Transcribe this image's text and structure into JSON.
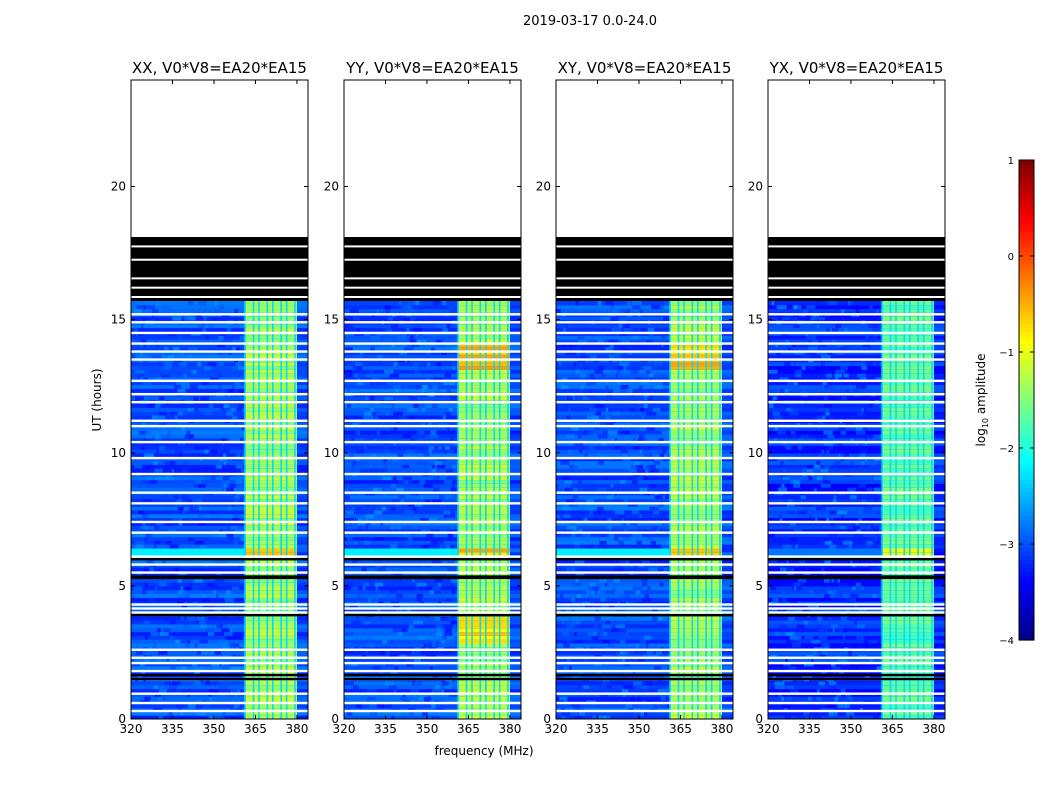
{
  "suptitle": "2019-03-17 0.0-24.0",
  "chart_data": {
    "type": "heatmap",
    "panels": [
      {
        "title": "XX, V0*V8=EA20*EA15",
        "pol": "XX"
      },
      {
        "title": "YY, V0*V8=EA20*EA15",
        "pol": "YY"
      },
      {
        "title": "XY, V0*V8=EA20*EA15",
        "pol": "XY"
      },
      {
        "title": "YX, V0*V8=EA20*EA15",
        "pol": "YX"
      }
    ],
    "xlabel": "frequency (MHz)",
    "ylabel": "UT (hours)",
    "xlim": [
      320,
      384
    ],
    "ylim": [
      0,
      24
    ],
    "xticks": [
      320,
      335,
      350,
      365,
      380
    ],
    "yticks": [
      0,
      5,
      10,
      15,
      20
    ],
    "colorbar": {
      "label": "log10 amplitude",
      "label_prefix": "log",
      "label_sub": "10",
      "label_suffix": " amplitude",
      "range": [
        -4,
        1
      ],
      "ticks": [
        1,
        0,
        -1,
        -2,
        -3,
        -4
      ],
      "colormap": "jet"
    },
    "data_coverage_hours": [
      0,
      15.7
    ],
    "flagged_black_band_hours": [
      15.7,
      18.1
    ],
    "empty_after_hours": 18.1,
    "high_amplitude_band_mhz": [
      361,
      380
    ],
    "background_log_amplitude": -3.0,
    "band_log_amplitude": -1.3
  },
  "colors": {
    "band_hot": "#ffff00",
    "background": "#0a3cff",
    "flagged": "#000000"
  }
}
